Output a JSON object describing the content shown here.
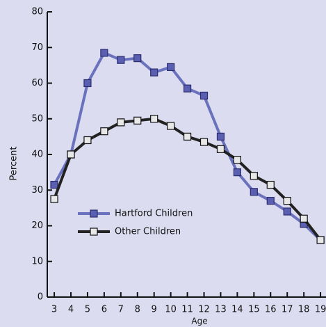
{
  "chart_data": {
    "type": "line",
    "x_label": "Age",
    "y_label": "Percent",
    "x": [
      3,
      4,
      5,
      6,
      7,
      8,
      9,
      10,
      11,
      12,
      13,
      14,
      15,
      16,
      17,
      18,
      19
    ],
    "xlim": [
      2.58,
      19.33
    ],
    "xticks": [
      3,
      4,
      5,
      6,
      7,
      8,
      9,
      10,
      11,
      12,
      13,
      14,
      15,
      16,
      17,
      18,
      19
    ],
    "ylim": [
      0,
      80
    ],
    "yticks": [
      0,
      10,
      20,
      30,
      40,
      50,
      60,
      70,
      80
    ],
    "series": [
      {
        "name": "Hartford Children",
        "color": "#6b72bd",
        "marker_color": "#5a5fb2",
        "values": [
          31.5,
          40,
          60,
          68.5,
          66.5,
          67,
          63,
          64.5,
          58.5,
          56.5,
          45,
          35,
          29.5,
          27,
          24,
          20.5,
          16
        ]
      },
      {
        "name": "Other Children",
        "color": "#222222",
        "marker_color": "#e8e8e8",
        "values": [
          27.5,
          40,
          44,
          46.5,
          49,
          49.5,
          50,
          48,
          45,
          43.5,
          41.5,
          38.5,
          34,
          31.5,
          27,
          22,
          16
        ]
      }
    ]
  }
}
